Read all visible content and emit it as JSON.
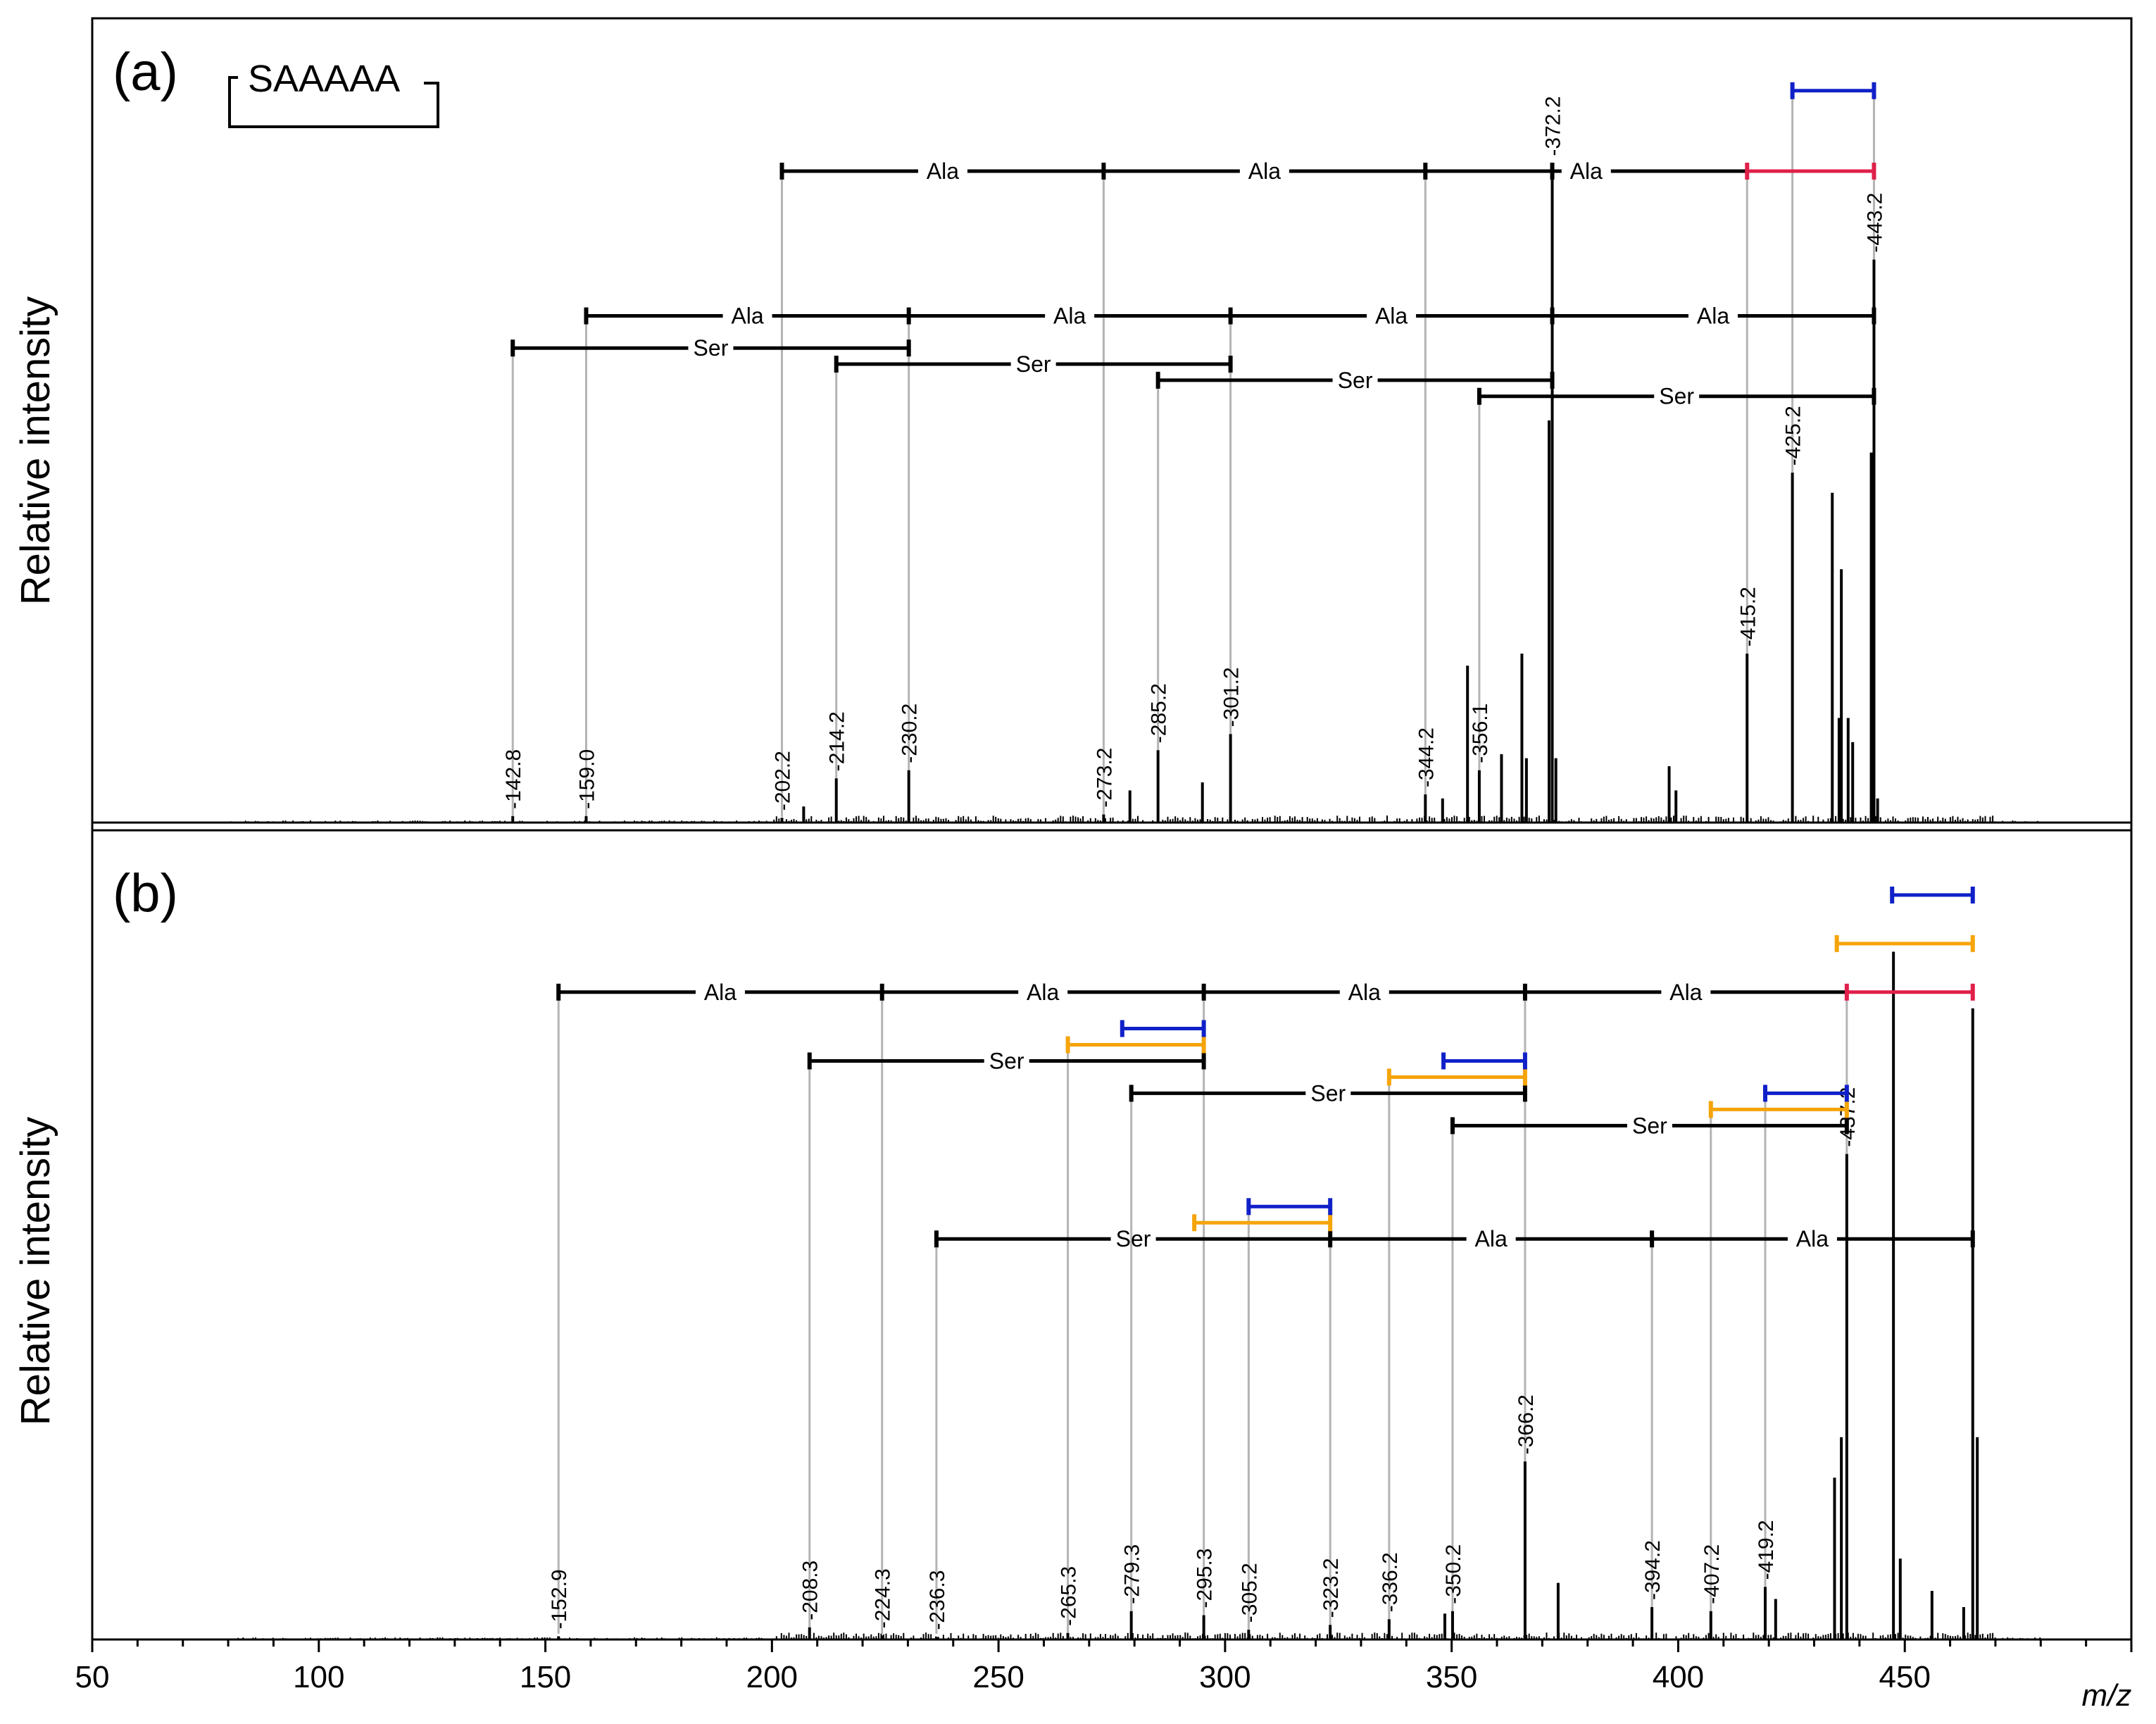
{
  "figure": {
    "x_axis_label": "m/z",
    "x_ticks": [
      50,
      100,
      150,
      200,
      250,
      300,
      350,
      400,
      450
    ],
    "colors": {
      "spectrum": "#000000",
      "guide": "#b4b4b4",
      "red": "#e0204a",
      "blue": "#1020c8",
      "orange": "#f5a40a"
    }
  },
  "chart_data": [
    {
      "type": "spectrum",
      "panel_label": "(a)",
      "ylabel": "Relative intensity",
      "title": "",
      "structure_label": "SAAAAA",
      "xlim": [
        50,
        500
      ],
      "ylim": [
        0,
        100
      ],
      "peaks": [
        {
          "mz": 142.8,
          "intensity": 0.8,
          "label": "142.8"
        },
        {
          "mz": 159.0,
          "intensity": 0.8,
          "label": "159.0"
        },
        {
          "mz": 202.2,
          "intensity": 0.6,
          "label": "202.2"
        },
        {
          "mz": 207.0,
          "intensity": 2.0,
          "label": ""
        },
        {
          "mz": 214.2,
          "intensity": 5.5,
          "label": "214.2"
        },
        {
          "mz": 230.2,
          "intensity": 6.5,
          "label": "230.2"
        },
        {
          "mz": 273.2,
          "intensity": 1.0,
          "label": "273.2"
        },
        {
          "mz": 279.0,
          "intensity": 4.0,
          "label": ""
        },
        {
          "mz": 285.2,
          "intensity": 9.0,
          "label": "285.2"
        },
        {
          "mz": 295.0,
          "intensity": 5.0,
          "label": ""
        },
        {
          "mz": 301.2,
          "intensity": 11.0,
          "label": "301.2"
        },
        {
          "mz": 344.2,
          "intensity": 3.5,
          "label": "344.2"
        },
        {
          "mz": 348.0,
          "intensity": 3.0,
          "label": ""
        },
        {
          "mz": 353.5,
          "intensity": 19.5,
          "label": ""
        },
        {
          "mz": 356.1,
          "intensity": 6.5,
          "label": "356.1"
        },
        {
          "mz": 361.0,
          "intensity": 8.5,
          "label": ""
        },
        {
          "mz": 365.5,
          "intensity": 21.0,
          "label": ""
        },
        {
          "mz": 366.5,
          "intensity": 8.0,
          "label": ""
        },
        {
          "mz": 371.5,
          "intensity": 50.0,
          "label": ""
        },
        {
          "mz": 372.2,
          "intensity": 82.0,
          "label": "372.2"
        },
        {
          "mz": 373.0,
          "intensity": 8.0,
          "label": ""
        },
        {
          "mz": 398.0,
          "intensity": 7.0,
          "label": ""
        },
        {
          "mz": 399.5,
          "intensity": 4.0,
          "label": ""
        },
        {
          "mz": 415.2,
          "intensity": 21.0,
          "label": "415.2"
        },
        {
          "mz": 425.2,
          "intensity": 43.5,
          "label": "425.2"
        },
        {
          "mz": 434.0,
          "intensity": 41.0,
          "label": ""
        },
        {
          "mz": 435.5,
          "intensity": 13.0,
          "label": ""
        },
        {
          "mz": 436.0,
          "intensity": 31.5,
          "label": ""
        },
        {
          "mz": 437.5,
          "intensity": 13.0,
          "label": ""
        },
        {
          "mz": 438.5,
          "intensity": 10.0,
          "label": ""
        },
        {
          "mz": 442.6,
          "intensity": 46.0,
          "label": ""
        },
        {
          "mz": 443.2,
          "intensity": 70.0,
          "label": "443.2"
        },
        {
          "mz": 444.0,
          "intensity": 3.0,
          "label": ""
        }
      ],
      "ladders": [
        {
          "level": 81.0,
          "color": "black",
          "ticks": [
            202.2,
            273.2,
            344.2,
            372.2
          ],
          "segments": [
            {
              "from": 202.2,
              "to": 273.2,
              "label": "Ala"
            },
            {
              "from": 273.2,
              "to": 344.2,
              "label": "Ala"
            },
            {
              "from": 344.2,
              "to": 415.2,
              "label": "Ala"
            }
          ]
        },
        {
          "level": 81.0,
          "color": "red",
          "ticks": [
            415.2,
            443.2
          ],
          "segments": [
            {
              "from": 415.2,
              "to": 443.2,
              "label": ""
            }
          ]
        },
        {
          "level": 91.0,
          "color": "blue",
          "ticks": [
            425.2,
            443.2
          ],
          "segments": [
            {
              "from": 425.2,
              "to": 443.2,
              "label": ""
            }
          ]
        },
        {
          "level": 63.0,
          "color": "black",
          "ticks": [
            159.0,
            230.2,
            301.2,
            372.2,
            443.2
          ],
          "segments": [
            {
              "from": 159.0,
              "to": 230.2,
              "label": "Ala"
            },
            {
              "from": 230.2,
              "to": 301.2,
              "label": "Ala"
            },
            {
              "from": 301.2,
              "to": 372.2,
              "label": "Ala"
            },
            {
              "from": 372.2,
              "to": 443.2,
              "label": "Ala"
            }
          ]
        },
        {
          "level": 59.0,
          "color": "black",
          "ticks": [
            142.8,
            230.2
          ],
          "segments": [
            {
              "from": 142.8,
              "to": 230.2,
              "label": "Ser"
            }
          ]
        },
        {
          "level": 57.0,
          "color": "black",
          "ticks": [
            214.2,
            301.2
          ],
          "segments": [
            {
              "from": 214.2,
              "to": 301.2,
              "label": "Ser"
            }
          ]
        },
        {
          "level": 55.0,
          "color": "black",
          "ticks": [
            285.2,
            372.2
          ],
          "segments": [
            {
              "from": 285.2,
              "to": 372.2,
              "label": "Ser"
            }
          ]
        },
        {
          "level": 53.0,
          "color": "black",
          "ticks": [
            356.1,
            443.2
          ],
          "segments": [
            {
              "from": 356.1,
              "to": 443.2,
              "label": "Ser"
            }
          ]
        }
      ]
    },
    {
      "type": "spectrum",
      "panel_label": "(b)",
      "ylabel": "Relative intensity",
      "title": "",
      "structure_label": "",
      "xlim": [
        50,
        500
      ],
      "ylim": [
        0,
        100
      ],
      "peaks": [
        {
          "mz": 152.9,
          "intensity": 0.4,
          "label": "152.9"
        },
        {
          "mz": 208.3,
          "intensity": 1.5,
          "label": "208.3"
        },
        {
          "mz": 224.3,
          "intensity": 0.5,
          "label": "224.3"
        },
        {
          "mz": 236.3,
          "intensity": 0.3,
          "label": "236.3"
        },
        {
          "mz": 265.3,
          "intensity": 0.8,
          "label": "265.3"
        },
        {
          "mz": 279.3,
          "intensity": 3.5,
          "label": "279.3"
        },
        {
          "mz": 295.3,
          "intensity": 3.0,
          "label": "295.3"
        },
        {
          "mz": 305.2,
          "intensity": 1.2,
          "label": "305.2"
        },
        {
          "mz": 323.2,
          "intensity": 1.8,
          "label": "323.2"
        },
        {
          "mz": 336.2,
          "intensity": 2.5,
          "label": "336.2"
        },
        {
          "mz": 348.5,
          "intensity": 3.2,
          "label": ""
        },
        {
          "mz": 350.2,
          "intensity": 3.5,
          "label": "350.2"
        },
        {
          "mz": 366.2,
          "intensity": 22.0,
          "label": "366.2"
        },
        {
          "mz": 373.5,
          "intensity": 7.0,
          "label": ""
        },
        {
          "mz": 394.2,
          "intensity": 4.0,
          "label": "394.2"
        },
        {
          "mz": 407.2,
          "intensity": 3.5,
          "label": "407.2"
        },
        {
          "mz": 419.2,
          "intensity": 6.5,
          "label": "419.2"
        },
        {
          "mz": 421.5,
          "intensity": 5.0,
          "label": ""
        },
        {
          "mz": 434.5,
          "intensity": 20.0,
          "label": ""
        },
        {
          "mz": 436.0,
          "intensity": 25.0,
          "label": ""
        },
        {
          "mz": 437.2,
          "intensity": 60.0,
          "label": "437.2"
        },
        {
          "mz": 447.5,
          "intensity": 85.0,
          "label": ""
        },
        {
          "mz": 449.0,
          "intensity": 10.0,
          "label": ""
        },
        {
          "mz": 456.0,
          "intensity": 6.0,
          "label": ""
        },
        {
          "mz": 463.0,
          "intensity": 4.0,
          "label": ""
        },
        {
          "mz": 465.0,
          "intensity": 78.0,
          "label": ""
        },
        {
          "mz": 466.0,
          "intensity": 25.0,
          "label": ""
        }
      ],
      "ladders": [
        {
          "level": 80.0,
          "color": "black",
          "ticks": [
            152.9,
            224.3,
            295.3,
            366.2
          ],
          "segments": [
            {
              "from": 152.9,
              "to": 224.3,
              "label": "Ala"
            },
            {
              "from": 224.3,
              "to": 295.3,
              "label": "Ala"
            },
            {
              "from": 295.3,
              "to": 366.2,
              "label": "Ala"
            },
            {
              "from": 366.2,
              "to": 437.2,
              "label": "Ala"
            }
          ]
        },
        {
          "level": 80.0,
          "color": "red",
          "ticks": [
            437.2,
            465.0
          ],
          "segments": [
            {
              "from": 437.2,
              "to": 465.0,
              "label": ""
            }
          ]
        },
        {
          "level": 86.0,
          "color": "orange",
          "ticks": [
            435.0,
            465.0
          ],
          "segments": [
            {
              "from": 435.0,
              "to": 465.0,
              "label": ""
            }
          ]
        },
        {
          "level": 92.0,
          "color": "blue",
          "ticks": [
            447.2,
            465.0
          ],
          "segments": [
            {
              "from": 447.2,
              "to": 465.0,
              "label": ""
            }
          ]
        },
        {
          "level": 71.5,
          "color": "black",
          "ticks": [
            208.3,
            295.3
          ],
          "segments": [
            {
              "from": 208.3,
              "to": 295.3,
              "label": "Ser"
            }
          ]
        },
        {
          "level": 73.5,
          "color": "orange",
          "ticks": [
            265.3,
            295.3
          ],
          "segments": [
            {
              "from": 265.3,
              "to": 295.3,
              "label": ""
            }
          ]
        },
        {
          "level": 75.5,
          "color": "blue",
          "ticks": [
            277.3,
            295.3
          ],
          "segments": [
            {
              "from": 277.3,
              "to": 295.3,
              "label": ""
            }
          ]
        },
        {
          "level": 67.5,
          "color": "black",
          "ticks": [
            279.3,
            366.2
          ],
          "segments": [
            {
              "from": 279.3,
              "to": 366.2,
              "label": "Ser"
            }
          ]
        },
        {
          "level": 69.5,
          "color": "orange",
          "ticks": [
            336.2,
            366.2
          ],
          "segments": [
            {
              "from": 336.2,
              "to": 366.2,
              "label": ""
            }
          ]
        },
        {
          "level": 71.5,
          "color": "blue",
          "ticks": [
            348.2,
            366.2
          ],
          "segments": [
            {
              "from": 348.2,
              "to": 366.2,
              "label": ""
            }
          ]
        },
        {
          "level": 63.5,
          "color": "black",
          "ticks": [
            350.2,
            437.2
          ],
          "segments": [
            {
              "from": 350.2,
              "to": 437.2,
              "label": "Ser"
            }
          ]
        },
        {
          "level": 65.5,
          "color": "orange",
          "ticks": [
            407.2,
            437.2
          ],
          "segments": [
            {
              "from": 407.2,
              "to": 437.2,
              "label": ""
            }
          ]
        },
        {
          "level": 67.5,
          "color": "blue",
          "ticks": [
            419.2,
            437.2
          ],
          "segments": [
            {
              "from": 419.2,
              "to": 437.2,
              "label": ""
            }
          ]
        },
        {
          "level": 49.5,
          "color": "black",
          "ticks": [
            236.3,
            323.2,
            394.2,
            465.0
          ],
          "segments": [
            {
              "from": 236.3,
              "to": 323.2,
              "label": "Ser"
            },
            {
              "from": 323.2,
              "to": 394.2,
              "label": "Ala"
            },
            {
              "from": 394.2,
              "to": 465.0,
              "label": "Ala"
            }
          ]
        },
        {
          "level": 51.5,
          "color": "orange",
          "ticks": [
            293.2,
            323.2
          ],
          "segments": [
            {
              "from": 293.2,
              "to": 323.2,
              "label": ""
            }
          ]
        },
        {
          "level": 53.5,
          "color": "blue",
          "ticks": [
            305.2,
            323.2
          ],
          "segments": [
            {
              "from": 305.2,
              "to": 323.2,
              "label": ""
            }
          ]
        }
      ]
    }
  ]
}
